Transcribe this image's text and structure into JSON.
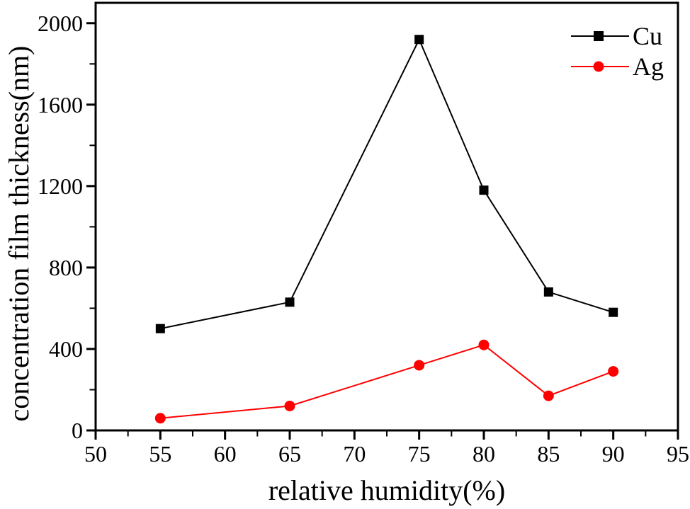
{
  "figure": {
    "background": "#ffffff",
    "axis_color": "#000000"
  },
  "chart_data": {
    "type": "line",
    "title": "",
    "xlabel": "relative humidity(%)",
    "ylabel": "concentration film thickness(nm)",
    "xlim": [
      50,
      95
    ],
    "ylim": [
      0,
      2100
    ],
    "x_major_ticks": [
      50,
      55,
      60,
      65,
      70,
      75,
      80,
      85,
      90,
      95
    ],
    "x_minor_ticks": [
      52.5,
      57.5,
      62.5,
      67.5,
      72.5,
      77.5,
      82.5,
      87.5,
      92.5
    ],
    "y_major_ticks": [
      0,
      400,
      800,
      1200,
      1600,
      2000
    ],
    "y_minor_ticks": [
      200,
      600,
      1000,
      1400,
      1800
    ],
    "grid": false,
    "legend_position": "top-right",
    "x": [
      55,
      65,
      75,
      80,
      85,
      90
    ],
    "series": [
      {
        "name": "Cu",
        "color": "#000000",
        "marker": "square",
        "values": [
          500,
          630,
          1920,
          1180,
          680,
          580
        ]
      },
      {
        "name": "Ag",
        "color": "#ff0000",
        "marker": "circle",
        "values": [
          60,
          120,
          320,
          420,
          170,
          290
        ]
      }
    ]
  }
}
